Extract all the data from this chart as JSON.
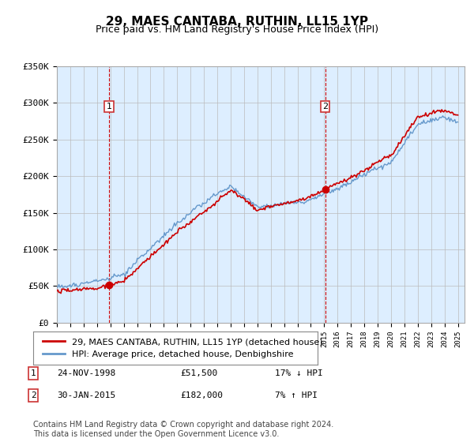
{
  "title": "29, MAES CANTABA, RUTHIN, LL15 1YP",
  "subtitle": "Price paid vs. HM Land Registry's House Price Index (HPI)",
  "legend_line1": "29, MAES CANTABA, RUTHIN, LL15 1YP (detached house)",
  "legend_line2": "HPI: Average price, detached house, Denbighshire",
  "annotation1_label": "1",
  "annotation1_date": "24-NOV-1998",
  "annotation1_price": "£51,500",
  "annotation1_hpi": "17% ↓ HPI",
  "annotation2_label": "2",
  "annotation2_date": "30-JAN-2015",
  "annotation2_price": "£182,000",
  "annotation2_hpi": "7% ↑ HPI",
  "footnote": "Contains HM Land Registry data © Crown copyright and database right 2024.\nThis data is licensed under the Open Government Licence v3.0.",
  "ylim": [
    0,
    350000
  ],
  "yticks": [
    0,
    50000,
    100000,
    150000,
    200000,
    250000,
    300000,
    350000
  ],
  "ytick_labels": [
    "£0",
    "£50K",
    "£100K",
    "£150K",
    "£200K",
    "£250K",
    "£300K",
    "£350K"
  ],
  "sale1_year": 1998.9,
  "sale1_price": 51500,
  "sale2_year": 2015.08,
  "sale2_price": 182000,
  "line_color_red": "#cc0000",
  "line_color_blue": "#6699cc",
  "bg_color": "#ddeeff",
  "grid_color": "#bbbbbb",
  "vline_color": "#cc0000",
  "box_color": "#cc3333",
  "title_fontsize": 11,
  "subtitle_fontsize": 9,
  "axis_fontsize": 8,
  "legend_fontsize": 8,
  "annotation_fontsize": 8,
  "footnote_fontsize": 7
}
